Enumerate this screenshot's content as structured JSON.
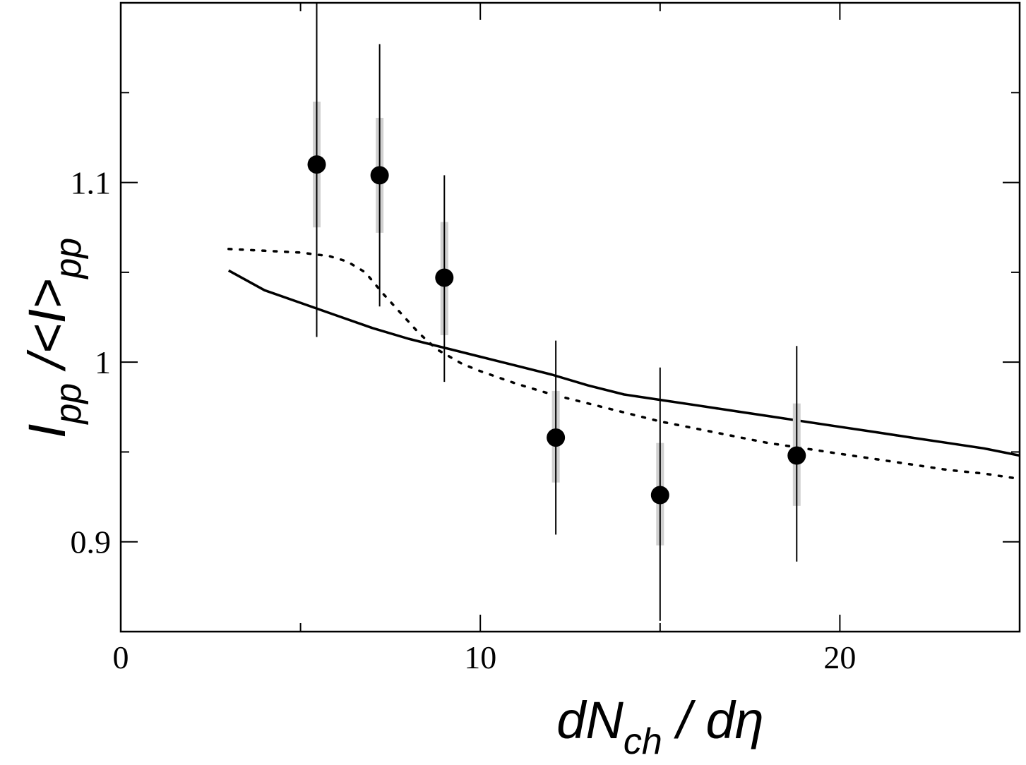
{
  "chart_data": {
    "type": "scatter",
    "xlabel": {
      "parts": [
        {
          "text": "dN",
          "sub": false
        },
        {
          "text": "ch",
          "sub": true
        },
        {
          "text": " / d",
          "sub": false
        },
        {
          "text": "η",
          "sub": false
        }
      ]
    },
    "ylabel": {
      "parts": [
        {
          "text": "I",
          "sub": false
        },
        {
          "text": "pp",
          "sub": true
        },
        {
          "text": " /<I>",
          "sub": false
        },
        {
          "text": "pp",
          "sub": true
        }
      ]
    },
    "xlim": [
      0,
      25
    ],
    "ylim": [
      0.85,
      1.2
    ],
    "x_ticks": [
      {
        "value": 0,
        "label": "0"
      },
      {
        "value": 10,
        "label": "10"
      },
      {
        "value": 20,
        "label": "20"
      }
    ],
    "x_minor_ticks": [
      5,
      15,
      25
    ],
    "y_ticks": [
      {
        "value": 0.9,
        "label": "0.9"
      },
      {
        "value": 1.0,
        "label": "1"
      },
      {
        "value": 1.1,
        "label": "1.1"
      }
    ],
    "y_minor_ticks": [
      0.95,
      1.05,
      1.15
    ],
    "grid": false,
    "points": [
      {
        "x": 5.45,
        "y": 1.11,
        "stat_lo": 1.014,
        "stat_hi": 1.2,
        "sys_lo": 1.075,
        "sys_hi": 1.145
      },
      {
        "x": 7.2,
        "y": 1.104,
        "stat_lo": 1.031,
        "stat_hi": 1.177,
        "sys_lo": 1.072,
        "sys_hi": 1.136
      },
      {
        "x": 9.0,
        "y": 1.047,
        "stat_lo": 0.989,
        "stat_hi": 1.104,
        "sys_lo": 1.015,
        "sys_hi": 1.078
      },
      {
        "x": 12.1,
        "y": 0.958,
        "stat_lo": 0.904,
        "stat_hi": 1.012,
        "sys_lo": 0.933,
        "sys_hi": 0.984
      },
      {
        "x": 15.0,
        "y": 0.926,
        "stat_lo": 0.856,
        "stat_hi": 0.997,
        "sys_lo": 0.898,
        "sys_hi": 0.955
      },
      {
        "x": 18.8,
        "y": 0.948,
        "stat_lo": 0.889,
        "stat_hi": 1.009,
        "sys_lo": 0.92,
        "sys_hi": 0.977
      }
    ],
    "curves": [
      {
        "style": "solid",
        "x": [
          3.0,
          4.0,
          5.0,
          6.0,
          7.0,
          8.0,
          9.0,
          10.0,
          11.0,
          12.0,
          13.0,
          14.0,
          15.0,
          16.0,
          17.0,
          18.0,
          19.0,
          20.0,
          21.0,
          22.0,
          23.0,
          24.0,
          25.0
        ],
        "y": [
          1.051,
          1.04,
          1.033,
          1.026,
          1.019,
          1.013,
          1.008,
          1.003,
          0.998,
          0.993,
          0.987,
          0.982,
          0.979,
          0.976,
          0.973,
          0.97,
          0.967,
          0.964,
          0.961,
          0.958,
          0.955,
          0.952,
          0.948
        ]
      },
      {
        "style": "dotted",
        "x": [
          3.0,
          4.0,
          5.0,
          5.8,
          6.3,
          6.8,
          7.3,
          7.8,
          8.3,
          8.8,
          9.5,
          10.0,
          11.0,
          12.0,
          13.0,
          14.0,
          15.0,
          16.0,
          17.0,
          18.0,
          19.0,
          20.0,
          21.0,
          22.0,
          23.0,
          24.0,
          25.0
        ],
        "y": [
          1.063,
          1.062,
          1.061,
          1.059,
          1.056,
          1.05,
          1.038,
          1.027,
          1.016,
          1.007,
          0.999,
          0.995,
          0.988,
          0.982,
          0.977,
          0.972,
          0.967,
          0.963,
          0.959,
          0.955,
          0.952,
          0.949,
          0.946,
          0.943,
          0.94,
          0.938,
          0.935
        ]
      }
    ]
  }
}
